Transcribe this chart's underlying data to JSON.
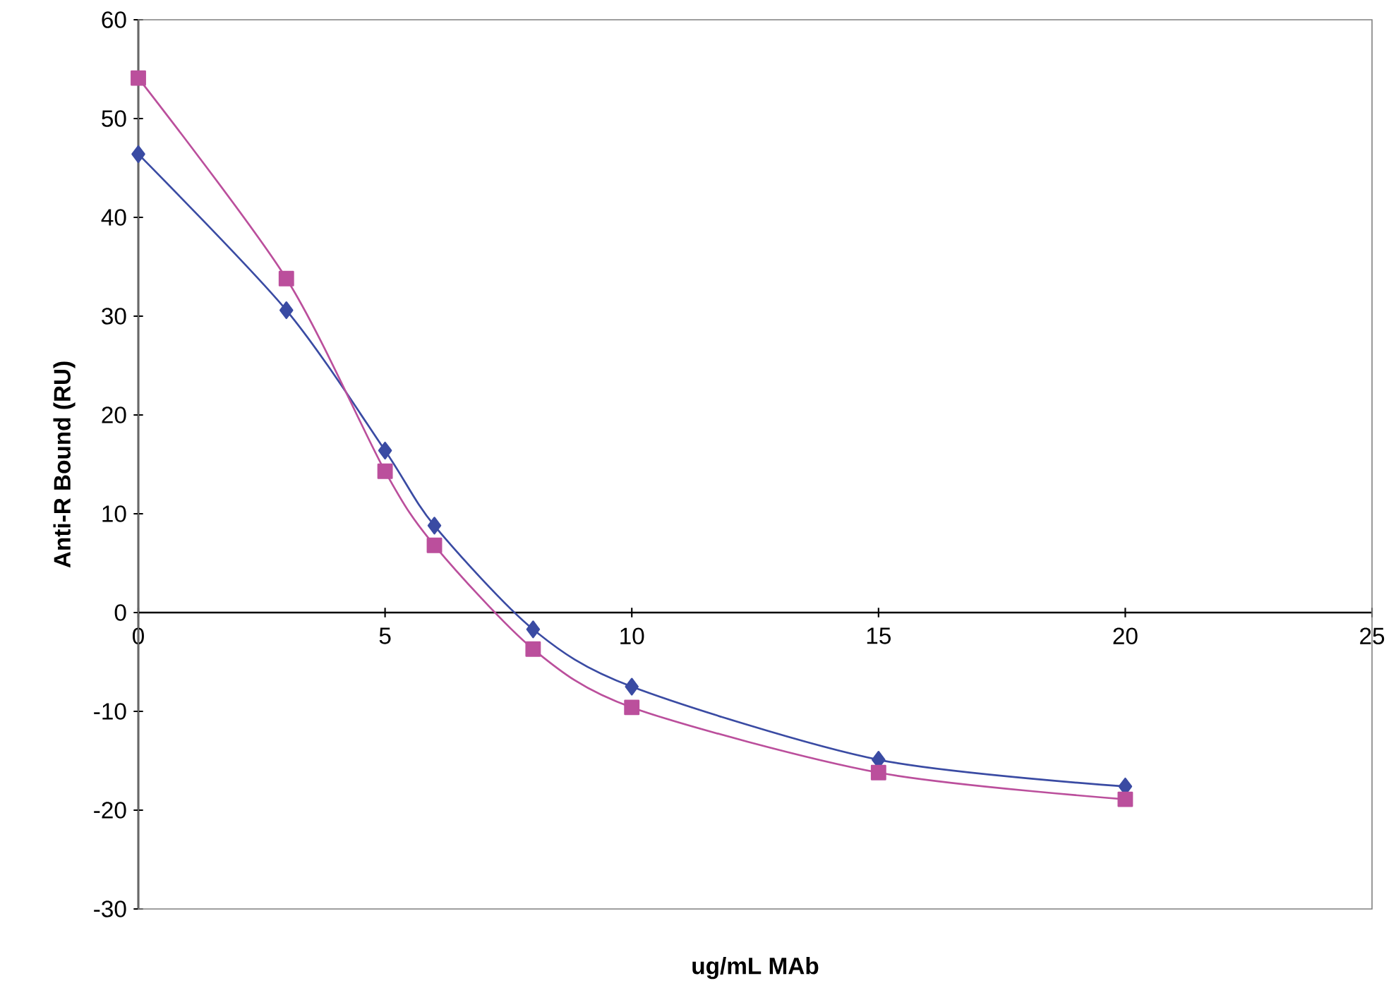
{
  "chart_data": {
    "type": "line",
    "xlabel": "ug/mL MAb",
    "ylabel": "Anti-R Bound (RU)",
    "x": [
      0,
      3,
      5,
      6,
      8,
      10,
      15,
      20
    ],
    "series": [
      {
        "color": "#3a4ba3",
        "marker": "diamond",
        "values": [
          46.4,
          30.6,
          16.4,
          8.8,
          -1.7,
          -7.5,
          -14.9,
          -17.6
        ]
      },
      {
        "color": "#bb4f9c",
        "marker": "square",
        "values": [
          54.1,
          33.8,
          14.3,
          6.8,
          -3.7,
          -9.6,
          -16.2,
          -18.9
        ]
      }
    ],
    "xlim": [
      0,
      25
    ],
    "xticks": [
      0,
      5,
      10,
      15,
      20,
      25
    ],
    "ylim": [
      -30,
      60
    ],
    "yticks": [
      -30,
      -20,
      -10,
      0,
      10,
      20,
      30,
      40,
      50,
      60
    ],
    "grid": false
  }
}
